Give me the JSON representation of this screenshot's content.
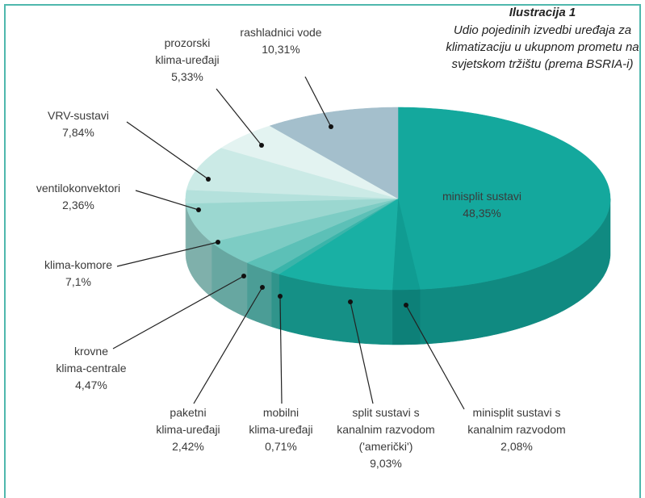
{
  "chart_data": {
    "type": "pie3d",
    "title": "Ilustracija 1",
    "subtitle": "Udio pojedinih izvedbi uređaja za\nklimatizaciju u ukupnom prometu na\nsvjetskom tržištu (prema BSRIA-i)",
    "categories": [
      "minisplit sustavi",
      "minisplit sustavi s\nkanalnim razvodom",
      "split sustavi s\nkanalnim razvodom\n('američki')",
      "mobilni\nklima-uređaji",
      "paketni\nklima-uređaji",
      "krovne\nklima-centrale",
      "klima-komore",
      "ventilokonvektori",
      "VRV-sustavi",
      "prozorski\nklima-uređaji",
      "rashladnici vode"
    ],
    "values": [
      48.35,
      2.08,
      9.03,
      0.71,
      2.42,
      4.47,
      7.1,
      2.36,
      7.84,
      5.33,
      10.31
    ],
    "value_labels": [
      "48,35%",
      "2,08%",
      "9,03%",
      "0,71%",
      "2,42%",
      "4,47%",
      "7,1%",
      "2,36%",
      "7,84%",
      "5,33%",
      "10,31%"
    ],
    "colors": [
      "#14a89d",
      "#109c92",
      "#19b0a4",
      "#3ab4aa",
      "#5cc0b7",
      "#7dccc4",
      "#9bd7d0",
      "#b4e1dc",
      "#cbeae6",
      "#e3f3f1",
      "#a4bfcc"
    ]
  }
}
